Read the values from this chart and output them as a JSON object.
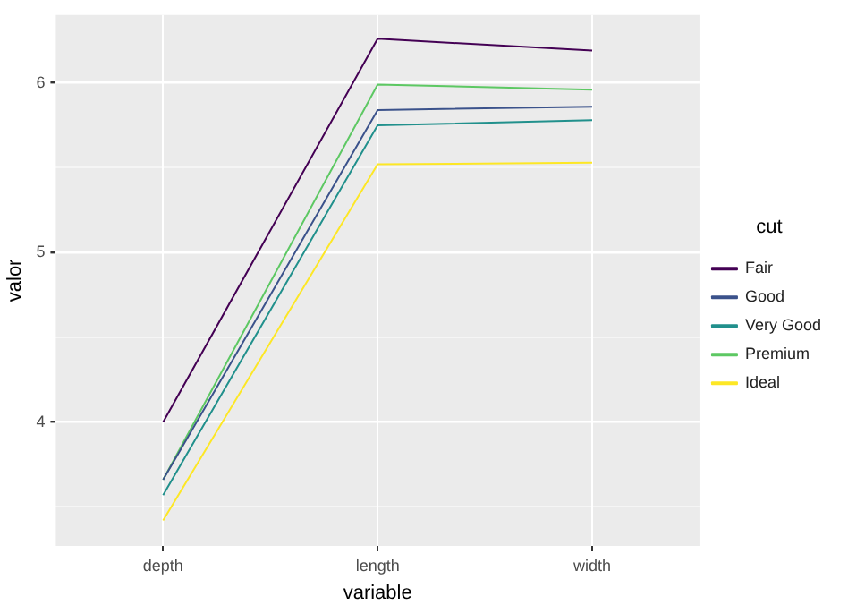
{
  "chart_data": {
    "type": "line",
    "xlabel": "variable",
    "ylabel": "valor",
    "legend_title": "cut",
    "categories": [
      "depth",
      "length",
      "width"
    ],
    "series": [
      {
        "name": "Fair",
        "color": "#440154",
        "values": [
          4.0,
          6.26,
          6.19
        ]
      },
      {
        "name": "Good",
        "color": "#3b528b",
        "values": [
          3.66,
          5.84,
          5.86
        ]
      },
      {
        "name": "Very Good",
        "color": "#21908c",
        "values": [
          3.57,
          5.75,
          5.78
        ]
      },
      {
        "name": "Premium",
        "color": "#5dc863",
        "values": [
          3.66,
          5.99,
          5.96
        ]
      },
      {
        "name": "Ideal",
        "color": "#fde725",
        "values": [
          3.42,
          5.52,
          5.53
        ]
      }
    ],
    "ylim": [
      3.27,
      6.4
    ],
    "yticks": [
      {
        "value": 3.5,
        "label": null
      },
      4,
      {
        "value": 4.5,
        "label": null
      },
      5,
      {
        "value": 5.5,
        "label": null
      },
      6
    ],
    "grid": true,
    "legend": "right",
    "marker": "none",
    "line_style": "solid"
  }
}
